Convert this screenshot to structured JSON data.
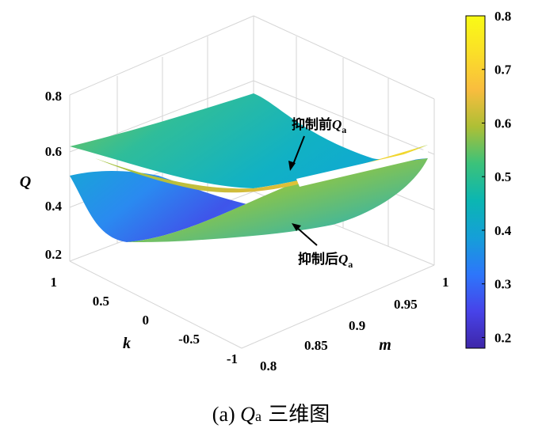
{
  "chart_data": {
    "type": "surface",
    "caption_prefix": "(a) ",
    "caption_symbol": "Q",
    "caption_subscript": "a",
    "caption_suffix": " 三维图",
    "xlabel": "k",
    "ylabel": "m",
    "zlabel": "Q",
    "x_ticks": [
      "1",
      "0.5",
      "0",
      "-0.5",
      "-1"
    ],
    "y_ticks": [
      "0.8",
      "0.85",
      "0.9",
      "0.95",
      "1"
    ],
    "z_ticks": [
      "0.8",
      "0.6",
      "0.4",
      "0.2"
    ],
    "xlim": [
      -1,
      1
    ],
    "ylim": [
      0.8,
      1
    ],
    "zlim": [
      0.2,
      0.8
    ],
    "colorbar": {
      "ticks": [
        "0.8",
        "0.7",
        "0.6",
        "0.5",
        "0.4",
        "0.3",
        "0.2"
      ],
      "range": [
        0.18,
        0.8
      ],
      "colormap": [
        "#3e26a8",
        "#4743e9",
        "#2d76fb",
        "#159fd8",
        "#0bb6b2",
        "#3bc27a",
        "#aebf35",
        "#f9bd3e",
        "#fadf28",
        "#f9fb15"
      ]
    },
    "annotations": [
      {
        "text": "抑制前",
        "symbol": "Q",
        "subscript": "a"
      },
      {
        "text": "抑制后",
        "symbol": "Q",
        "subscript": "a"
      }
    ],
    "series": [
      {
        "annotation_index": 0,
        "corner_values": {
          "k1_m0.8": 0.61,
          "k-1_m0.8": 0.73,
          "k-1_m1": 0.55,
          "k1_m1": 0.53
        },
        "min_value": 0.5
      },
      {
        "annotation_index": 1,
        "corner_values": {
          "k1_m0.8": 0.5,
          "k-1_m0.8": 0.8,
          "k-1_m1": 0.5,
          "k1_m1": 0.45
        },
        "min_value": 0.24
      }
    ]
  }
}
